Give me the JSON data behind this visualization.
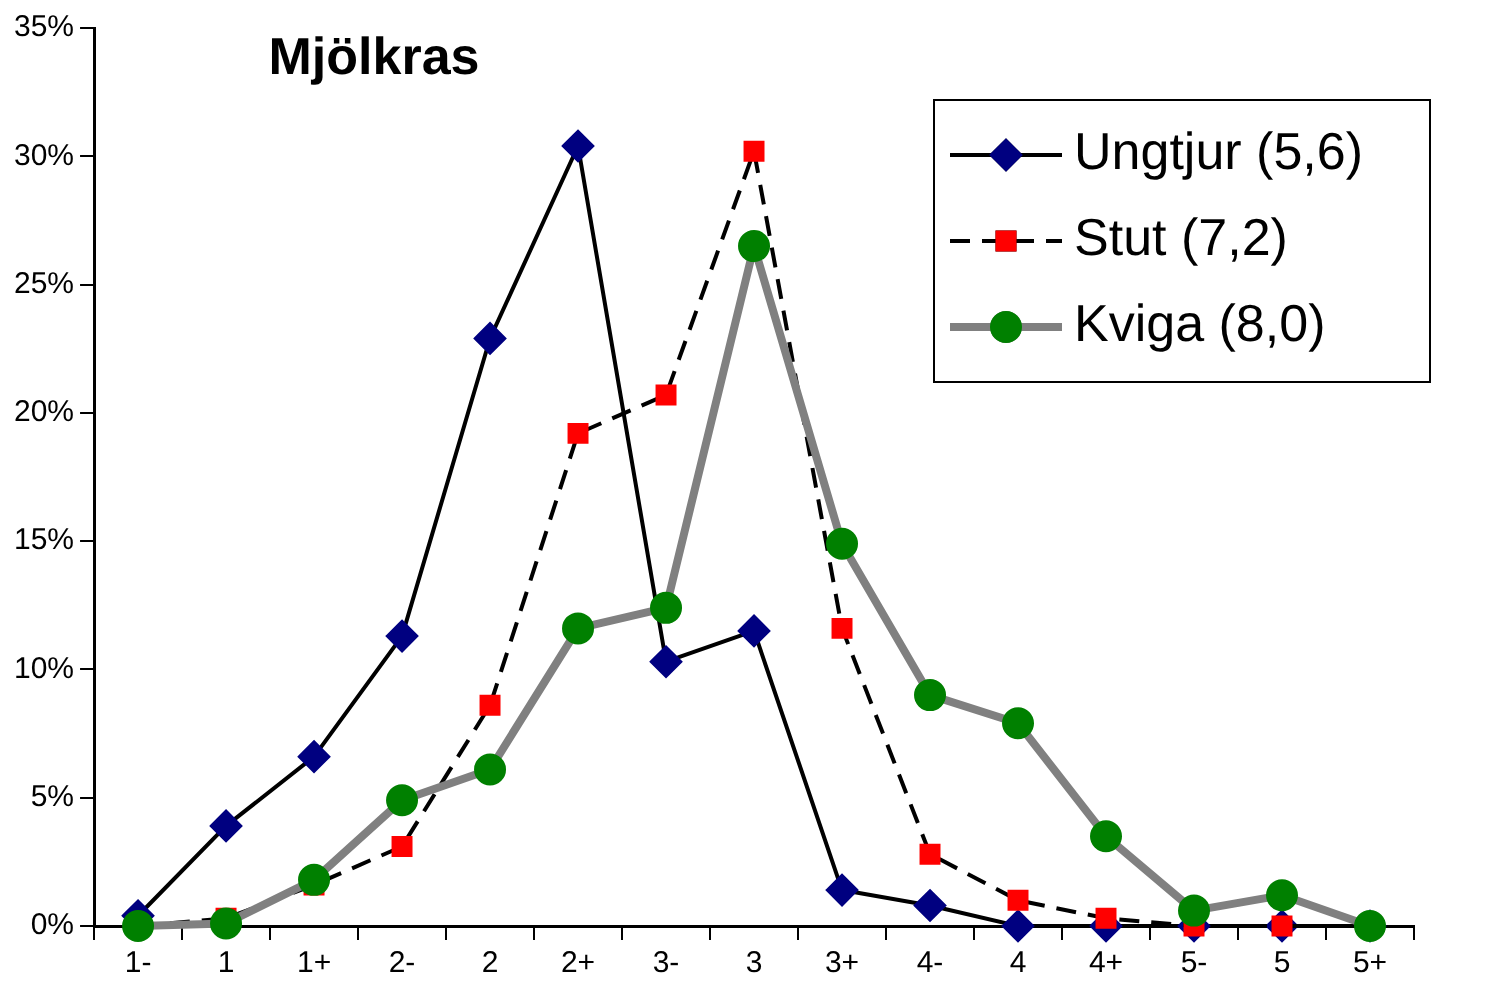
{
  "chart_data": {
    "type": "line",
    "title": "Mjölkras",
    "categories": [
      "1-",
      "1",
      "1+",
      "2-",
      "2",
      "2+",
      "3-",
      "3",
      "3+",
      "4-",
      "4",
      "4+",
      "5-",
      "5",
      "5+"
    ],
    "series": [
      {
        "name": "Ungtjur (5,6)",
        "color": "#000080",
        "marker": "diamond",
        "line_style": "solid",
        "values": [
          0.4,
          3.9,
          6.6,
          11.3,
          22.9,
          30.4,
          10.3,
          11.5,
          1.4,
          0.8,
          0,
          0,
          0,
          0,
          0
        ]
      },
      {
        "name": "Stut (7,2)",
        "color": "#ff0000",
        "marker": "square",
        "line_style": "dashed",
        "values": [
          0,
          0.3,
          1.6,
          3.1,
          8.6,
          19.2,
          20.7,
          30.2,
          11.6,
          2.8,
          1.0,
          0.3,
          0,
          0,
          0
        ]
      },
      {
        "name": "Kviga (8,0)",
        "color": "#008000",
        "marker": "circle",
        "line_style": "solid",
        "values": [
          0,
          0.1,
          1.8,
          4.9,
          6.1,
          11.6,
          12.4,
          26.5,
          14.9,
          9.0,
          7.9,
          3.5,
          0.6,
          1.2,
          0
        ]
      }
    ],
    "ylim": [
      0,
      35
    ],
    "yticks": [
      {
        "value": 0,
        "label": "0%"
      },
      {
        "value": 5,
        "label": "5%"
      },
      {
        "value": 10,
        "label": "10%"
      },
      {
        "value": 15,
        "label": "15%"
      },
      {
        "value": 20,
        "label": "20%"
      },
      {
        "value": 25,
        "label": "25%"
      },
      {
        "value": 30,
        "label": "30%"
      },
      {
        "value": 35,
        "label": "35%"
      }
    ],
    "grid": false,
    "legend": "top right"
  }
}
